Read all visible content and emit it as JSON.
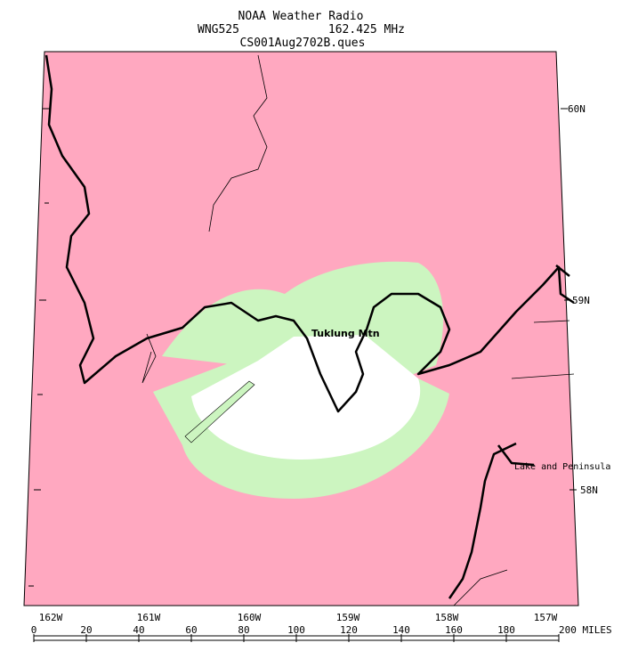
{
  "header": {
    "title": "NOAA Weather Radio",
    "station": "WNG525",
    "frequency": "162.425 MHz",
    "file": "CS001Aug2702B.ques"
  },
  "latitude_labels": [
    "60N",
    "59N",
    "58N"
  ],
  "longitude_labels": [
    "162W",
    "161W",
    "160W",
    "159W",
    "158W",
    "157W"
  ],
  "scale": {
    "ticks": [
      0,
      20,
      40,
      60,
      80,
      100,
      120,
      140,
      160,
      180,
      {
        "value": 200,
        "label": "200 MILES"
      }
    ]
  },
  "places": [
    "Tuklung Mtn",
    "Lake and Peninsula"
  ]
}
